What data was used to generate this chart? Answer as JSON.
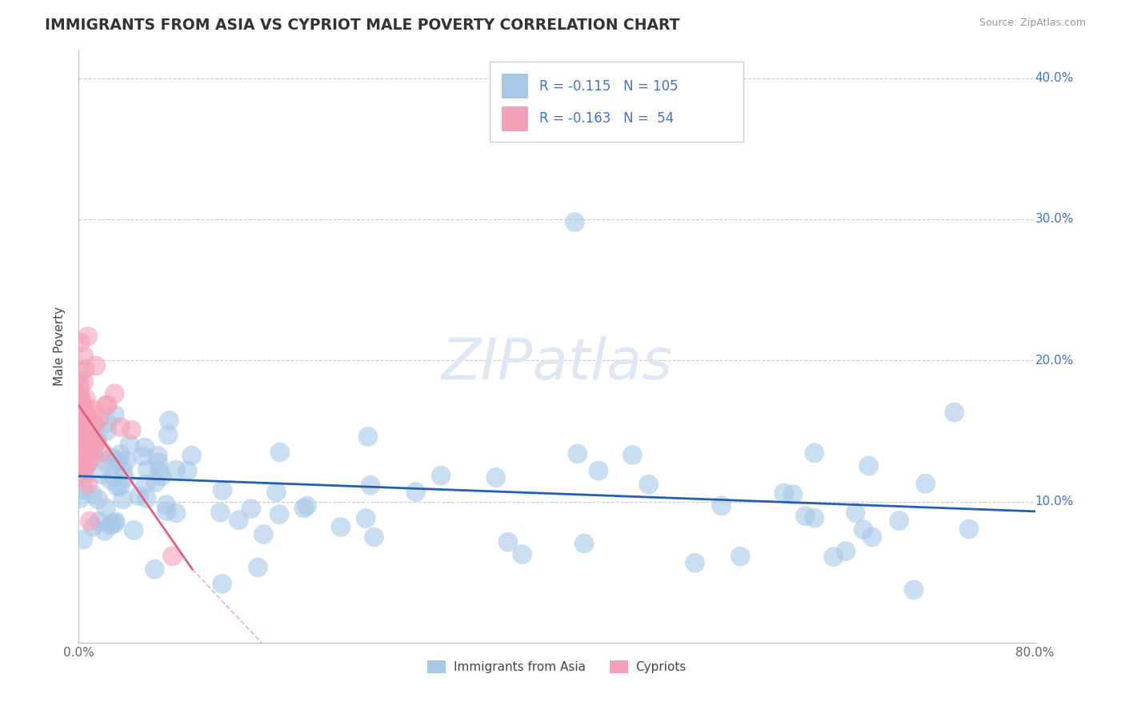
{
  "title": "IMMIGRANTS FROM ASIA VS CYPRIOT MALE POVERTY CORRELATION CHART",
  "source": "Source: ZipAtlas.com",
  "ylabel": "Male Poverty",
  "xlim": [
    0.0,
    0.8
  ],
  "ylim": [
    0.0,
    0.42
  ],
  "xtick_vals": [
    0.0,
    0.1,
    0.2,
    0.3,
    0.4,
    0.5,
    0.6,
    0.7,
    0.8
  ],
  "ytick_vals": [
    0.0,
    0.1,
    0.2,
    0.3,
    0.4
  ],
  "legend_blue_r": "-0.115",
  "legend_blue_n": "105",
  "legend_pink_r": "-0.163",
  "legend_pink_n": "54",
  "legend_label_blue": "Immigrants from Asia",
  "legend_label_pink": "Cypriots",
  "blue_color": "#a8c8e8",
  "pink_color": "#f4a0b8",
  "blue_line_color": "#2060b0",
  "pink_line_color": "#e06080",
  "legend_text_color": "#4472c4",
  "watermark_color": "#dde8f4",
  "background_color": "#ffffff",
  "grid_color": "#cccccc",
  "right_tick_color": "#4472c4"
}
